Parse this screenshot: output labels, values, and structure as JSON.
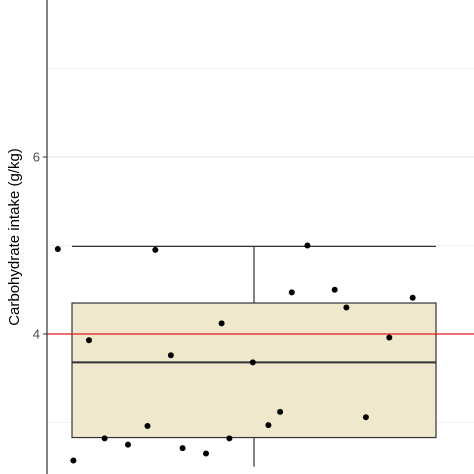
{
  "chart_data": {
    "type": "box",
    "title": "",
    "xlabel": "",
    "ylabel": "Carbohydrate intake (g/kg)",
    "ylim": [
      2.5,
      7.8
    ],
    "yticks": [
      4,
      6
    ],
    "ytick_labels": [
      "4",
      "6"
    ],
    "grid": true,
    "reference_line": {
      "y": 4.0,
      "color": "#e31a1c"
    },
    "box": {
      "q1": 2.83,
      "median": 3.68,
      "q3": 4.35,
      "whisker_low": 2.5,
      "whisker_high": 4.99,
      "fill": "#efe8cd",
      "stroke": "#333333"
    },
    "points": [
      {
        "x": 0.02,
        "y": 4.96
      },
      {
        "x": 0.1,
        "y": 3.93
      },
      {
        "x": 0.06,
        "y": 2.57
      },
      {
        "x": 0.14,
        "y": 2.82
      },
      {
        "x": 0.2,
        "y": 2.75
      },
      {
        "x": 0.25,
        "y": 2.96
      },
      {
        "x": 0.27,
        "y": 4.95
      },
      {
        "x": 0.31,
        "y": 3.76
      },
      {
        "x": 0.34,
        "y": 2.71
      },
      {
        "x": 0.4,
        "y": 2.65
      },
      {
        "x": 0.44,
        "y": 4.12
      },
      {
        "x": 0.46,
        "y": 2.82
      },
      {
        "x": 0.52,
        "y": 3.68
      },
      {
        "x": 0.56,
        "y": 2.97
      },
      {
        "x": 0.59,
        "y": 3.12
      },
      {
        "x": 0.62,
        "y": 4.47
      },
      {
        "x": 0.66,
        "y": 5.0
      },
      {
        "x": 0.73,
        "y": 4.5
      },
      {
        "x": 0.76,
        "y": 4.3
      },
      {
        "x": 0.81,
        "y": 3.06
      },
      {
        "x": 0.87,
        "y": 3.96
      },
      {
        "x": 0.93,
        "y": 4.41
      }
    ]
  }
}
